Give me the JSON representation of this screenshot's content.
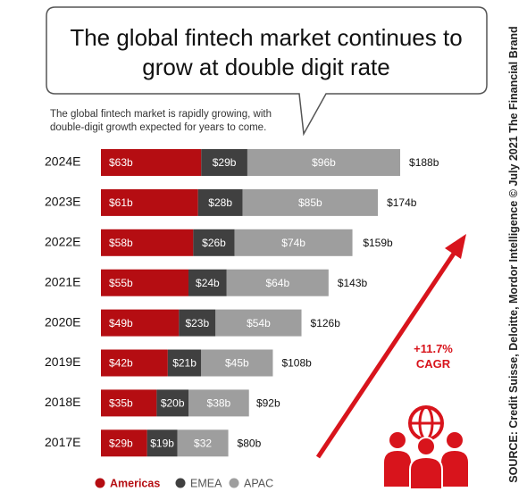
{
  "chart_data": {
    "type": "bar",
    "orientation": "horizontal",
    "stacked": true,
    "title": "The global fintech market continues to grow at double digit rate",
    "subtitle": "The global fintech market is rapidly growing, with double-digit growth expected for years to come.",
    "annotation": "+11.7% CAGR",
    "source": "SOURCE: Credit Suisse, Deloitte, Mordor Intelligence © July 2021 The Financial Brand",
    "categories": [
      "2024E",
      "2023E",
      "2022E",
      "2021E",
      "2020E",
      "2019E",
      "2018E",
      "2017E"
    ],
    "series": [
      {
        "name": "Americas",
        "color": "#b50d12",
        "values": [
          63,
          61,
          58,
          55,
          49,
          42,
          35,
          29
        ],
        "value_labels": [
          "$63b",
          "$61b",
          "$58b",
          "$55b",
          "$49b",
          "$42b",
          "$35b",
          "$29b"
        ]
      },
      {
        "name": "EMEA",
        "color": "#404040",
        "values": [
          29,
          28,
          26,
          24,
          23,
          21,
          20,
          19
        ],
        "value_labels": [
          "$29b",
          "$28b",
          "$26b",
          "$24b",
          "$23b",
          "$21b",
          "$20b",
          "$19b"
        ]
      },
      {
        "name": "APAC",
        "color": "#9e9e9e",
        "values": [
          96,
          85,
          74,
          64,
          54,
          45,
          38,
          32
        ],
        "value_labels": [
          "$96b",
          "$85b",
          "$74b",
          "$64b",
          "$54b",
          "$45b",
          "$38b",
          "$32"
        ]
      }
    ],
    "totals": {
      "values": [
        188,
        174,
        159,
        143,
        126,
        108,
        92,
        80
      ],
      "value_labels": [
        "$188b",
        "$174b",
        "$159b",
        "$143b",
        "$126b",
        "$108b",
        "$92b",
        "$80b"
      ]
    }
  }
}
